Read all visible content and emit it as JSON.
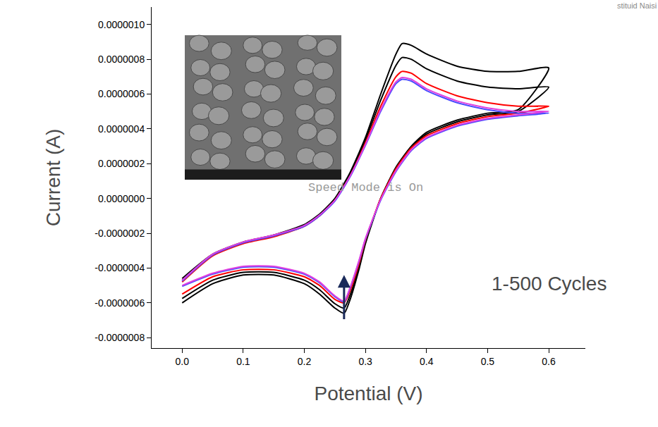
{
  "chart_data": {
    "type": "line",
    "x_label": "Potential (V)",
    "y_label": "Current (A)",
    "xlim": [
      -0.05,
      0.66
    ],
    "xticks": [
      {
        "value": 0,
        "label": "0.0"
      },
      0.1,
      0.2,
      0.3,
      0.4,
      0.5,
      0.6
    ],
    "ylim": [
      -8.6e-07,
      1.1e-06
    ],
    "yticks": [
      {
        "value": -8e-07,
        "label": "-0.0000008"
      },
      {
        "value": -6e-07,
        "label": "-0.0000006"
      },
      {
        "value": -4e-07,
        "label": "-0.0000004"
      },
      {
        "value": -2e-07,
        "label": "-0.0000002"
      },
      {
        "value": 0,
        "label": "0.0000000"
      },
      {
        "value": 2e-07,
        "label": "0.0000002"
      },
      {
        "value": 4e-07,
        "label": "0.0000004"
      },
      {
        "value": 6e-07,
        "label": "0.0000006"
      },
      {
        "value": 8e-07,
        "label": "0.0000008"
      },
      {
        "value": 1e-06,
        "label": "0.0000010"
      }
    ],
    "grid": false,
    "x": [
      0,
      0.05,
      0.1,
      0.15,
      0.2,
      0.225,
      0.25,
      0.275,
      0.3,
      0.325,
      0.35,
      0.36,
      0.375,
      0.4,
      0.45,
      0.5,
      0.55,
      0.6,
      0.55,
      0.5,
      0.45,
      0.4,
      0.375,
      0.35,
      0.325,
      0.3,
      0.29,
      0.275,
      0.265,
      0.25,
      0.225,
      0.2,
      0.15,
      0.1,
      0.05,
      0
    ],
    "series": [
      {
        "color": "#000000",
        "line_style": "solid",
        "values": [
          -4.6e-07,
          -3.2e-07,
          -2.5e-07,
          -2.1e-07,
          -1.5e-07,
          -9e-08,
          0,
          1.5e-07,
          3.5e-07,
          6e-07,
          8.3e-07,
          8.9e-07,
          8.8e-07,
          8.3e-07,
          7.6e-07,
          7.3e-07,
          7.3e-07,
          7.5e-07,
          5.1e-07,
          4.9e-07,
          4.5e-07,
          3.8e-07,
          3e-07,
          1.8e-07,
          0,
          -2.6e-07,
          -4e-07,
          -5.8e-07,
          -6.6e-07,
          -6.3e-07,
          -5.5e-07,
          -4.9e-07,
          -4.4e-07,
          -4.4e-07,
          -4.9e-07,
          -6e-07
        ]
      },
      {
        "color": "#000000",
        "line_style": "solid",
        "values": [
          -4.7e-07,
          -3.25e-07,
          -2.55e-07,
          -2.15e-07,
          -1.55e-07,
          -9.5e-08,
          -5e-09,
          1.4e-07,
          3.35e-07,
          5.65e-07,
          7.65e-07,
          8.1e-07,
          8e-07,
          7.45e-07,
          6.75e-07,
          6.4e-07,
          6.3e-07,
          6.4e-07,
          5e-07,
          4.8e-07,
          4.4e-07,
          3.7e-07,
          2.95e-07,
          1.75e-07,
          0,
          -2.5e-07,
          -3.85e-07,
          -5.55e-07,
          -6.3e-07,
          -6.05e-07,
          -5.25e-07,
          -4.7e-07,
          -4.25e-07,
          -4.25e-07,
          -4.7e-07,
          -5.75e-07
        ]
      },
      {
        "color": "#ff0000",
        "line_style": "solid",
        "values": [
          -4.8e-07,
          -3.3e-07,
          -2.6e-07,
          -2.2e-07,
          -1.6e-07,
          -1e-07,
          -1e-08,
          1.3e-07,
          3.2e-07,
          5.3e-07,
          7e-07,
          7.3e-07,
          7.2e-07,
          6.6e-07,
          5.9e-07,
          5.5e-07,
          5.3e-07,
          5.3e-07,
          4.9e-07,
          4.7e-07,
          4.3e-07,
          3.6e-07,
          2.9e-07,
          1.7e-07,
          0,
          -2.4e-07,
          -3.7e-07,
          -5.3e-07,
          -6e-07,
          -5.8e-07,
          -5e-07,
          -4.5e-07,
          -4.1e-07,
          -4.1e-07,
          -4.5e-07,
          -5.5e-07
        ]
      },
      {
        "color": "#4b4bff",
        "line_style": "solid",
        "values": [
          -4.75e-07,
          -3.25e-07,
          -2.55e-07,
          -2.15e-07,
          -1.6e-07,
          -1e-07,
          -1.5e-08,
          1.25e-07,
          3.05e-07,
          5e-07,
          6.6e-07,
          6.85e-07,
          6.75e-07,
          6.2e-07,
          5.5e-07,
          5.1e-07,
          4.9e-07,
          4.9e-07,
          4.75e-07,
          4.55e-07,
          4.15e-07,
          3.45e-07,
          2.75e-07,
          1.55e-07,
          -1e-08,
          -2.35e-07,
          -3.55e-07,
          -5.15e-07,
          -5.95e-07,
          -5.65e-07,
          -4.85e-07,
          -4.35e-07,
          -3.95e-07,
          -3.95e-07,
          -4.35e-07,
          -5.05e-07
        ]
      },
      {
        "color": "#e040e0",
        "line_style": "solid",
        "values": [
          -4.7e-07,
          -3.2e-07,
          -2.5e-07,
          -2.1e-07,
          -1.55e-07,
          -9.5e-08,
          -1e-08,
          1.3e-07,
          3.1e-07,
          5.1e-07,
          6.7e-07,
          6.95e-07,
          6.85e-07,
          6.3e-07,
          5.6e-07,
          5.2e-07,
          5e-07,
          5e-07,
          4.8e-07,
          4.6e-07,
          4.2e-07,
          3.5e-07,
          2.8e-07,
          1.6e-07,
          -5e-09,
          -2.3e-07,
          -3.5e-07,
          -5.1e-07,
          -5.9e-07,
          -5.6e-07,
          -4.8e-07,
          -4.3e-07,
          -3.9e-07,
          -3.9e-07,
          -4.3e-07,
          -5e-07
        ]
      }
    ],
    "annotations": [
      {
        "text": "Speed Mode is On",
        "x": 0.3,
        "y": 6.2e-08
      },
      {
        "text": "1-500 Cycles",
        "x": 0.6,
        "y": -4.9e-07
      },
      {
        "text": "stituid Naisi"
      }
    ],
    "arrow": {
      "x": 0.265,
      "from": -7e-07,
      "to": -4.4e-07,
      "color": "#1a2a5a"
    }
  }
}
